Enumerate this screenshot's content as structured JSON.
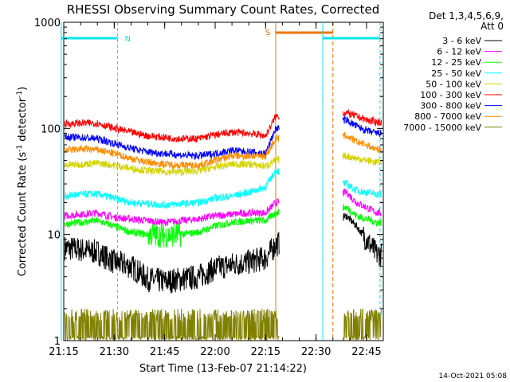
{
  "chart_data": {
    "type": "line",
    "title": "RHESSI Observing Summary Count Rates, Corrected",
    "xlabel": "Start Time (13-Feb-07 21:14:22)",
    "ylabel_main": "Corrected Count Rate (s",
    "ylabel_sup1": "-1",
    "ylabel_mid": " detector",
    "ylabel_sup2": "-1",
    "ylabel_end": ")",
    "yscale": "log",
    "ylim": [
      1,
      1000
    ],
    "xlim_minutes": [
      21.25,
      22.833
    ],
    "x_ticks": [
      "21:15",
      "21:30",
      "21:45",
      "22:00",
      "22:15",
      "22:30",
      "22:45"
    ],
    "y_ticks": [
      "1",
      "10",
      "100",
      "1000"
    ],
    "detector_info": "Det 1,3,4,5,6,9,",
    "attenuator": "Att 0",
    "timestamp": "14-Oct-2021 05:08",
    "markers": {
      "night": {
        "label": "N",
        "start": "21:14",
        "end": "21:31",
        "color": "#00e5ee"
      },
      "saa": {
        "label": "S",
        "start": "22:18",
        "end": "22:35",
        "color": "#ee7600"
      },
      "second_night_start": "22:32",
      "second_night_end": "22:49"
    },
    "gap": {
      "start": "22:19",
      "end": "22:38"
    },
    "series": [
      {
        "name": "3 - 6 keV",
        "color": "#000000",
        "times": [
          "21:15",
          "21:20",
          "21:25",
          "21:30",
          "21:35",
          "21:40",
          "21:45",
          "21:50",
          "21:55",
          "22:00",
          "22:05",
          "22:10",
          "22:15",
          "22:18",
          "22:39",
          "22:42",
          "22:45",
          "22:48"
        ],
        "values": [
          7.5,
          7.2,
          6.8,
          5.5,
          5.0,
          3.8,
          3.6,
          3.8,
          4.0,
          4.8,
          5.2,
          5.5,
          6.0,
          8.0,
          15,
          12,
          9,
          6.5
        ]
      },
      {
        "name": "6 - 12 keV",
        "color": "#ff00ff",
        "times": [
          "21:15",
          "21:20",
          "21:25",
          "21:30",
          "21:35",
          "21:40",
          "21:45",
          "21:50",
          "21:55",
          "22:00",
          "22:05",
          "22:10",
          "22:15",
          "22:18",
          "22:39",
          "22:42",
          "22:45",
          "22:48"
        ],
        "values": [
          15,
          15.5,
          16,
          14.5,
          14,
          13.5,
          13,
          13.5,
          14,
          15,
          15.5,
          16,
          16,
          20,
          25,
          20,
          18,
          16
        ]
      },
      {
        "name": "12 - 25 keV",
        "color": "#00ff00",
        "times": [
          "21:15",
          "21:20",
          "21:25",
          "21:30",
          "21:35",
          "21:40",
          "21:45",
          "21:50",
          "21:55",
          "22:00",
          "22:05",
          "22:10",
          "22:15",
          "22:18",
          "22:39",
          "22:42",
          "22:45",
          "22:48"
        ],
        "values": [
          12.5,
          13,
          13.5,
          12,
          10.5,
          10,
          9.8,
          10,
          10.5,
          12,
          13,
          13.5,
          13.5,
          16,
          18,
          15,
          14,
          13
        ]
      },
      {
        "name": "25 - 50 keV",
        "color": "#00ffff",
        "times": [
          "21:15",
          "21:20",
          "21:25",
          "21:30",
          "21:35",
          "21:40",
          "21:45",
          "21:50",
          "21:55",
          "22:00",
          "22:05",
          "22:10",
          "22:15",
          "22:18",
          "22:39",
          "22:42",
          "22:45",
          "22:48"
        ],
        "values": [
          23,
          24,
          24,
          22,
          20,
          19.5,
          19,
          19.5,
          20,
          22,
          23,
          25,
          28,
          40,
          30,
          26,
          25,
          24
        ]
      },
      {
        "name": "50 - 100 keV",
        "color": "#d4d400",
        "times": [
          "21:15",
          "21:20",
          "21:25",
          "21:30",
          "21:35",
          "21:40",
          "21:45",
          "21:50",
          "21:55",
          "22:00",
          "22:05",
          "22:10",
          "22:15",
          "22:18",
          "22:39",
          "22:42",
          "22:45",
          "22:48"
        ],
        "values": [
          45,
          46,
          47,
          45,
          42,
          40,
          39,
          39,
          40,
          43,
          46,
          46,
          44,
          50,
          55,
          52,
          50,
          48
        ]
      },
      {
        "name": "100 - 300 keV",
        "color": "#ff0000",
        "times": [
          "21:15",
          "21:20",
          "21:25",
          "21:30",
          "21:35",
          "21:40",
          "21:45",
          "21:50",
          "21:55",
          "22:00",
          "22:05",
          "22:10",
          "22:15",
          "22:18",
          "22:39",
          "22:42",
          "22:45",
          "22:48"
        ],
        "values": [
          110,
          112,
          112,
          100,
          92,
          85,
          82,
          80,
          80,
          87,
          92,
          90,
          85,
          130,
          140,
          130,
          120,
          115
        ]
      },
      {
        "name": "300 - 800 keV",
        "color": "#0000ff",
        "times": [
          "21:15",
          "21:20",
          "21:25",
          "21:30",
          "21:35",
          "21:40",
          "21:45",
          "21:50",
          "21:55",
          "22:00",
          "22:05",
          "22:10",
          "22:15",
          "22:18",
          "22:39",
          "22:42",
          "22:45",
          "22:48"
        ],
        "values": [
          83,
          82,
          80,
          72,
          65,
          60,
          58,
          56,
          55,
          58,
          62,
          60,
          58,
          100,
          120,
          105,
          95,
          90
        ]
      },
      {
        "name": "800 - 7000 keV",
        "color": "#ff8c00",
        "times": [
          "21:15",
          "21:20",
          "21:25",
          "21:30",
          "21:35",
          "21:40",
          "21:45",
          "21:50",
          "21:55",
          "22:00",
          "22:05",
          "22:10",
          "22:15",
          "22:18",
          "22:39",
          "22:42",
          "22:45",
          "22:48"
        ],
        "values": [
          62,
          64,
          63,
          58,
          52,
          48,
          46,
          45,
          45,
          50,
          55,
          55,
          55,
          80,
          85,
          75,
          70,
          63
        ]
      },
      {
        "name": "7000 - 15000 keV",
        "color": "#808000",
        "times": [
          "21:15",
          "21:20",
          "21:25",
          "21:30",
          "21:35",
          "21:40",
          "21:45",
          "21:50",
          "21:55",
          "22:00",
          "22:05",
          "22:10",
          "22:15",
          "22:18",
          "22:39",
          "22:42",
          "22:45",
          "22:48"
        ],
        "values": [
          1.5,
          1.6,
          1.8,
          1.2,
          1.0,
          1.0,
          1.0,
          1.3,
          1.0,
          1.0,
          1.5,
          1.6,
          1.7,
          1.5,
          1.5,
          1.6,
          1.5,
          1.4
        ]
      }
    ]
  }
}
